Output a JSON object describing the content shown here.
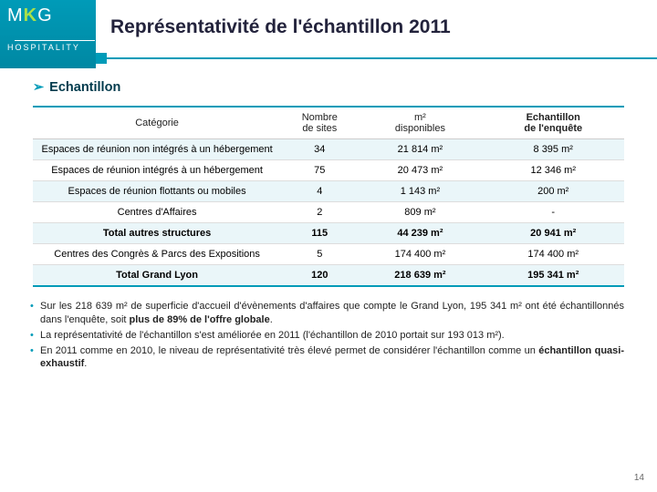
{
  "logo": {
    "prefix": "M",
    "accent": "K",
    "suffix": "G",
    "sub": "HOSPITALITY"
  },
  "title": "Représentativité de l'échantillon 2011",
  "section": {
    "chevron": "➢",
    "label": "Echantillon"
  },
  "table": {
    "columns": [
      {
        "main": "Catégorie",
        "sub": ""
      },
      {
        "main": "Nombre",
        "sub": "de sites"
      },
      {
        "main": "m²",
        "sub": "disponibles"
      },
      {
        "main": "Echantillon",
        "sub": "de l'enquête",
        "bold": true
      }
    ],
    "rows": [
      {
        "cls": "even",
        "c0": "Espaces de réunion non intégrés à un hébergement",
        "c1": "34",
        "c2": "21 814 m²",
        "c3": "8 395 m²"
      },
      {
        "cls": "",
        "c0": "Espaces de réunion intégrés à un hébergement",
        "c1": "75",
        "c2": "20 473 m²",
        "c3": "12 346 m²"
      },
      {
        "cls": "even",
        "c0": "Espaces de réunion flottants ou mobiles",
        "c1": "4",
        "c2": "1 143 m²",
        "c3": "200 m²"
      },
      {
        "cls": "",
        "c0": "Centres d'Affaires",
        "c1": "2",
        "c2": "809 m²",
        "c3": "-"
      },
      {
        "cls": "total",
        "c0": "Total autres structures",
        "c1": "115",
        "c2": "44 239 m²",
        "c3": "20 941 m²"
      },
      {
        "cls": "",
        "c0": "Centres des Congrès & Parcs des Expositions",
        "c1": "5",
        "c2": "174 400 m²",
        "c3": "174 400 m²"
      },
      {
        "cls": "grand",
        "c0": "Total Grand Lyon",
        "c1": "120",
        "c2": "218 639 m²",
        "c3": "195 341 m²"
      }
    ]
  },
  "bullets": [
    {
      "pre": "Sur les 218 639 m² de superficie d'accueil d'évènements d'affaires que compte le Grand Lyon, 195 341 m² ont été échantillonnés dans l'enquête, soit ",
      "bold": "plus de 89% de l'offre globale",
      "post": "."
    },
    {
      "pre": "La représentativité de l'échantillon s'est améliorée en 2011 (l'échantillon de 2010 portait sur 193 013 m²).",
      "bold": "",
      "post": ""
    },
    {
      "pre": "En 2011 comme en 2010, le niveau de représentativité très élevé permet de considérer l'échantillon comme un ",
      "bold": "échantillon quasi-exhaustif",
      "post": "."
    }
  ],
  "pagenum": "14",
  "colors": {
    "accent": "#009bb8",
    "stripe": "#eaf6f9"
  }
}
